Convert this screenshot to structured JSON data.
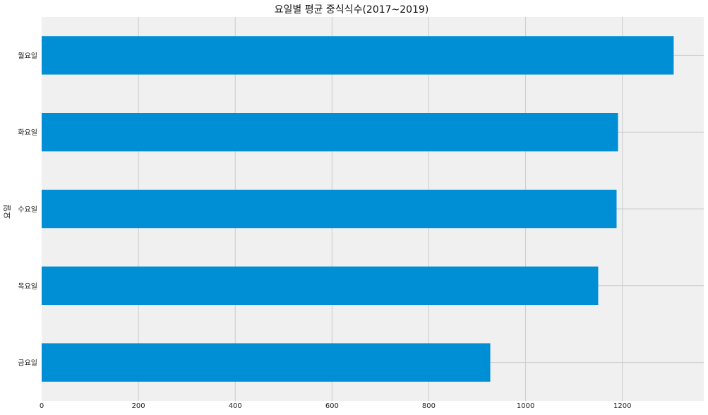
{
  "chart_data": {
    "type": "bar",
    "orientation": "horizontal",
    "title": "요일별 평균 중식식수(2017~2019)",
    "xlabel": "",
    "ylabel": "요일",
    "categories": [
      "월요일",
      "화요일",
      "수요일",
      "목요일",
      "금요일"
    ],
    "values": [
      1306,
      1191,
      1188,
      1150,
      927
    ],
    "xlim": [
      0,
      1370
    ],
    "xticks": [
      0,
      200,
      400,
      600,
      800,
      1000,
      1200
    ],
    "grid": true,
    "legend": "none",
    "colors": {
      "bar": "#008fd5",
      "plot_bg": "#f0f0f0",
      "grid": "#cbcbcb"
    }
  }
}
